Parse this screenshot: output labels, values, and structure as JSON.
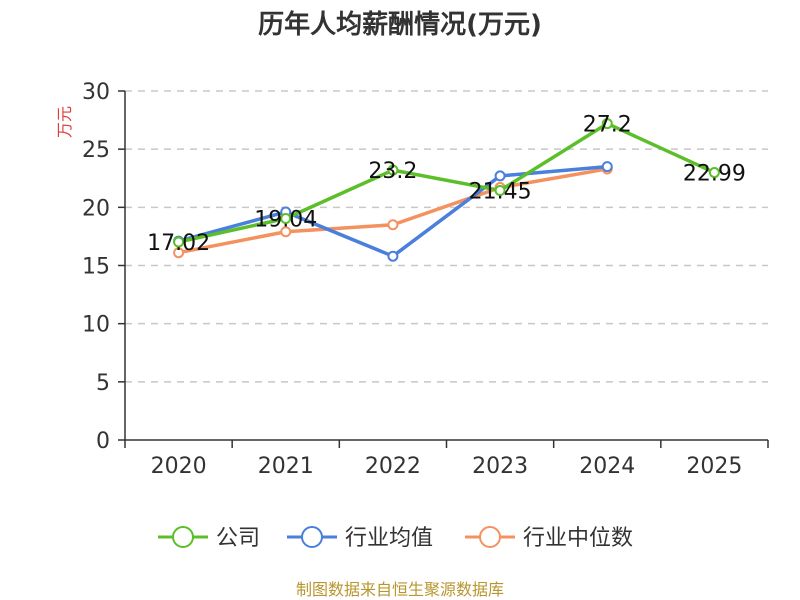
{
  "chart_data": {
    "type": "line",
    "title": "历年人均薪酬情况(万元)",
    "ylabel": "万元",
    "categories": [
      "2020",
      "2021",
      "2022",
      "2023",
      "2024",
      "2025"
    ],
    "ylim": [
      0,
      30
    ],
    "yticks": [
      0,
      5,
      10,
      15,
      20,
      25,
      30
    ],
    "grid": true,
    "legend_position": "bottom",
    "series": [
      {
        "name": "公司",
        "color": "#5cbf2a",
        "values": [
          17.02,
          19.04,
          23.2,
          21.45,
          27.2,
          22.99
        ],
        "labels": [
          "17.02",
          "19.04",
          "23.2",
          "21.45",
          "27.2",
          "22.99"
        ]
      },
      {
        "name": "行业均值",
        "color": "#4a7fdc",
        "values": [
          17.1,
          19.6,
          15.8,
          22.7,
          23.5,
          null
        ]
      },
      {
        "name": "行业中位数",
        "color": "#f4925f",
        "values": [
          16.1,
          17.9,
          18.5,
          21.7,
          23.3,
          null
        ]
      }
    ],
    "source": "制图数据来自恒生聚源数据库"
  }
}
